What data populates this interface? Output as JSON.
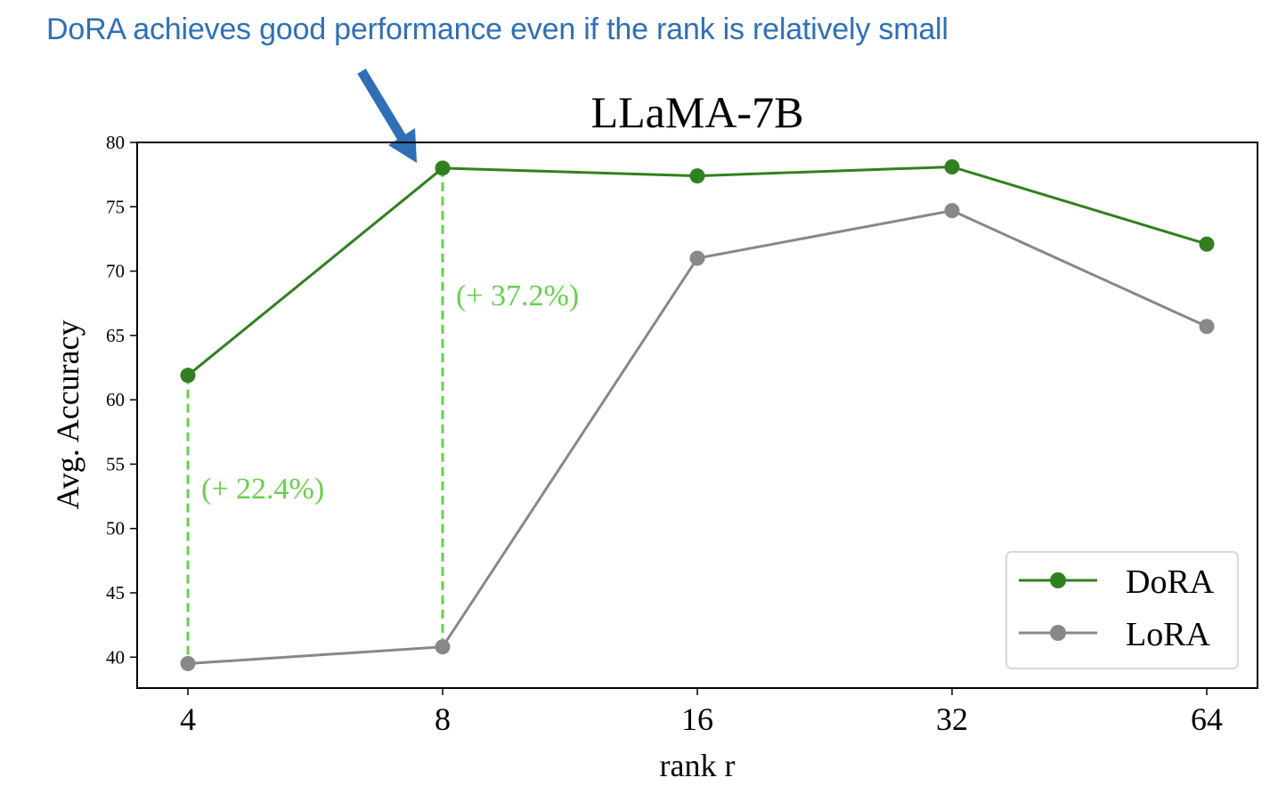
{
  "annotation": {
    "text": "DoRA achieves good performance even if the rank is relatively small",
    "color": "#2f6fb6"
  },
  "chart_data": {
    "type": "line",
    "title": "LLaMA-7B",
    "xlabel": "rank r",
    "ylabel": "Avg. Accuracy",
    "categories": [
      "4",
      "8",
      "16",
      "32",
      "64"
    ],
    "yticks": [
      40,
      45,
      50,
      55,
      60,
      65,
      70,
      75,
      80
    ],
    "ylim": [
      37.6,
      80
    ],
    "grid": false,
    "legend": "bottom-right",
    "series": [
      {
        "name": "DoRA",
        "color": "#31801f",
        "values": [
          61.9,
          78.0,
          77.4,
          78.1,
          72.1
        ]
      },
      {
        "name": "LoRA",
        "color": "#888888",
        "values": [
          39.5,
          40.8,
          71.0,
          74.7,
          65.7
        ]
      }
    ],
    "gap_annotations": [
      {
        "category": "4",
        "label": "(+ 22.4%)"
      },
      {
        "category": "8",
        "label": "(+ 37.2%)"
      }
    ],
    "gap_color": "#66d04c"
  }
}
